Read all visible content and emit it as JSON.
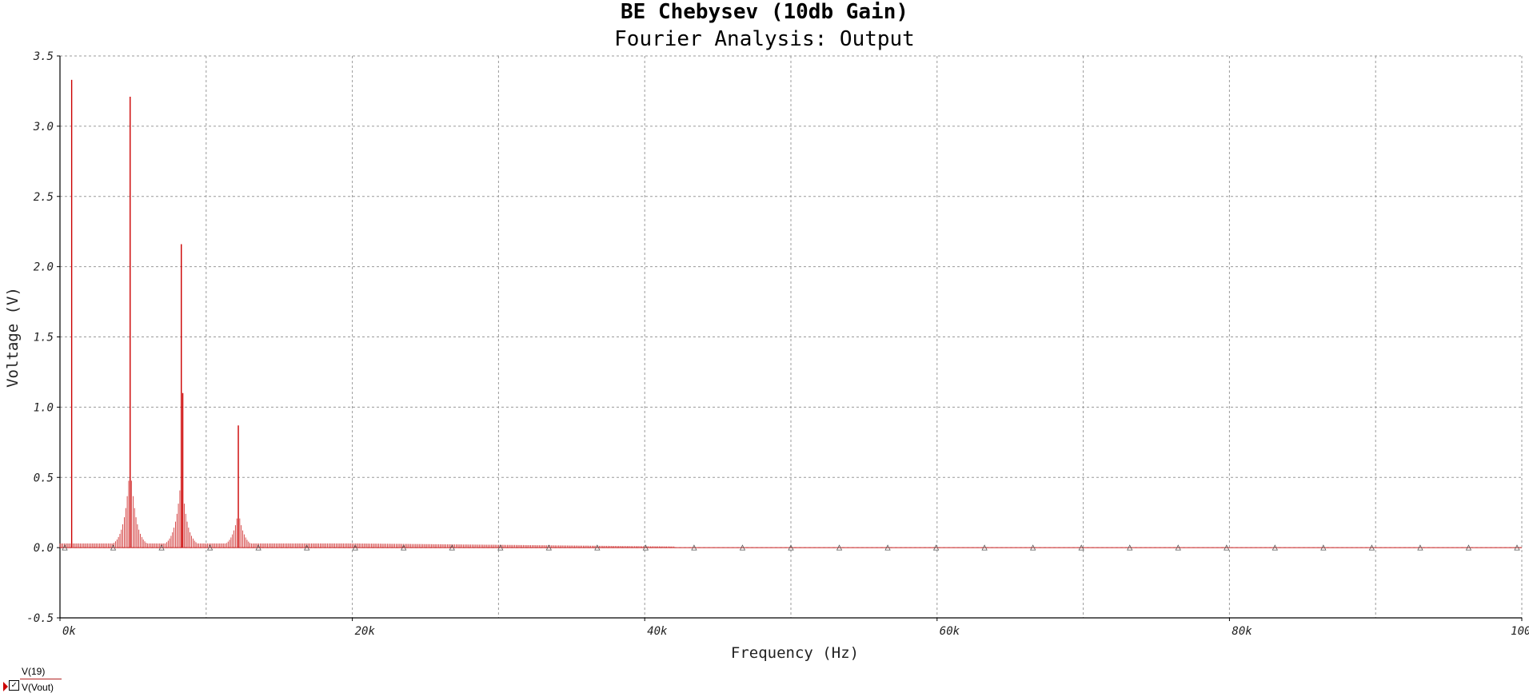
{
  "chart_data": {
    "type": "bar",
    "title": "BE Chebysev (10db Gain)",
    "subtitle": "Fourier Analysis: Output",
    "xlabel": "Frequency (Hz)",
    "ylabel": "Voltage (V)",
    "xlim": [
      0,
      100000
    ],
    "ylim": [
      -0.5,
      3.5
    ],
    "x_ticks": [
      0,
      20000,
      40000,
      60000,
      80000,
      100000
    ],
    "x_tick_labels": [
      "0k",
      "20k",
      "40k",
      "60k",
      "80k",
      "100k"
    ],
    "y_ticks": [
      -0.5,
      0.0,
      0.5,
      1.0,
      1.5,
      2.0,
      2.5,
      3.0,
      3.5
    ],
    "y_tick_labels": [
      "-0.5",
      "0.0",
      "0.5",
      "1.0",
      "1.5",
      "2.0",
      "2.5",
      "3.0",
      "3.5"
    ],
    "grid": true,
    "series": [
      {
        "name": "V(Vout)",
        "color": "#cc0000",
        "peaks": [
          {
            "x": 800,
            "y": 3.33
          },
          {
            "x": 4800,
            "y": 3.21
          },
          {
            "x": 8300,
            "y": 2.16
          },
          {
            "x": 8400,
            "y": 1.1
          },
          {
            "x": 12200,
            "y": 0.87
          }
        ],
        "lobes": [
          {
            "x": 4800,
            "y": 0.62
          },
          {
            "x": 8300,
            "y": 0.53
          },
          {
            "x": 12200,
            "y": 0.27
          }
        ],
        "floor": 0.03,
        "spectrum_extent": 42000
      }
    ],
    "legend": {
      "placement": "bottom-left",
      "entries": [
        "V(19)",
        "V(Vout)"
      ]
    }
  }
}
